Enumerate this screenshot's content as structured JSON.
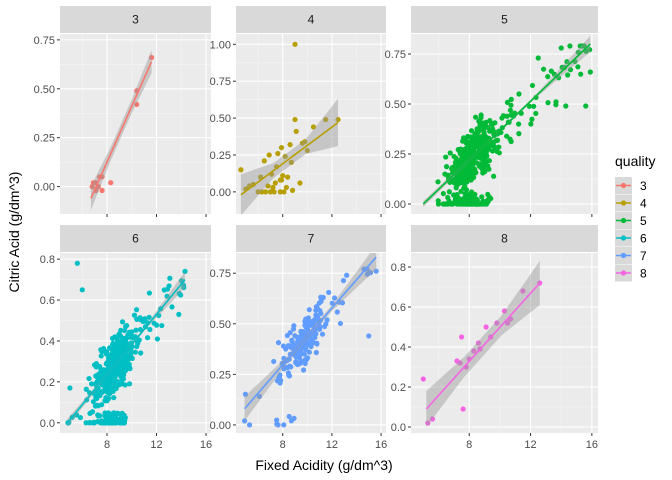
{
  "chart_data": {
    "type": "scatter",
    "title": "",
    "xlabel": "Fixed Acidity (g/dm^3)",
    "ylabel": "Citric Acid (g/dm^3)",
    "facet_by": "quality",
    "shared_x": true,
    "xlim": [
      4.2,
      16.4
    ],
    "x_ticks": [
      8,
      12,
      16
    ],
    "x_tick_labels": [
      "8",
      "12",
      "16"
    ],
    "grid": true,
    "smoothing": "linear fit with confidence band",
    "legend": {
      "title": "quality",
      "placement": "right",
      "entries": [
        "3",
        "4",
        "5",
        "6",
        "7",
        "8"
      ]
    },
    "panels": [
      {
        "label": "3",
        "color": "#F8766D",
        "ylim": [
          -0.14,
          0.78
        ],
        "y_ticks": [
          0,
          0.25,
          0.5,
          0.75
        ],
        "y_tick_labels": [
          "0.00",
          "0.25",
          "0.50",
          "0.75"
        ],
        "fit": {
          "x0": 6.7,
          "y0": -0.06,
          "x1": 11.6,
          "y1": 0.64
        },
        "band": [
          0.06,
          0.035,
          0.035,
          0.06
        ],
        "points": [
          [
            6.8,
            0.0
          ],
          [
            7.1,
            0.02
          ],
          [
            7.3,
            0.0
          ],
          [
            7.4,
            0.05
          ],
          [
            7.6,
            0.05
          ],
          [
            7.1,
            -0.02
          ],
          [
            7.6,
            -0.02
          ],
          [
            6.9,
            0.02
          ],
          [
            8.3,
            0.02
          ],
          [
            10.4,
            0.49
          ],
          [
            10.4,
            0.42
          ],
          [
            11.6,
            0.66
          ]
        ]
      },
      {
        "label": "4",
        "color": "#B79F00",
        "ylim": [
          -0.15,
          1.07
        ],
        "y_ticks": [
          0,
          0.25,
          0.5,
          0.75,
          1.0
        ],
        "y_tick_labels": [
          "0.00",
          "0.25",
          "0.50",
          "0.75",
          "1.00"
        ],
        "fit": {
          "x0": 4.6,
          "y0": -0.02,
          "x1": 12.5,
          "y1": 0.47
        },
        "band": [
          0.14,
          0.05,
          0.05,
          0.16
        ],
        "points": [
          [
            4.6,
            0.15
          ],
          [
            5.0,
            0.02
          ],
          [
            5.3,
            0.04
          ],
          [
            5.6,
            0.05
          ],
          [
            6.0,
            0.0
          ],
          [
            6.2,
            0.1
          ],
          [
            6.3,
            0.0
          ],
          [
            6.5,
            0.21
          ],
          [
            6.6,
            0.0
          ],
          [
            6.8,
            0.04
          ],
          [
            6.9,
            0.25
          ],
          [
            7.0,
            0.0
          ],
          [
            7.1,
            0.12
          ],
          [
            7.2,
            0.03
          ],
          [
            7.3,
            0.0
          ],
          [
            7.4,
            0.06
          ],
          [
            7.5,
            0.17
          ],
          [
            7.6,
            0.26
          ],
          [
            7.8,
            0.0
          ],
          [
            7.8,
            0.08
          ],
          [
            7.9,
            0.3
          ],
          [
            8.0,
            0.11
          ],
          [
            8.1,
            0.0
          ],
          [
            8.2,
            0.24
          ],
          [
            8.3,
            0.03
          ],
          [
            8.4,
            0.1
          ],
          [
            8.6,
            0.32
          ],
          [
            8.8,
            0.01
          ],
          [
            9.0,
            0.49
          ],
          [
            9.1,
            0.41
          ],
          [
            9.6,
            0.33
          ],
          [
            9.8,
            0.34
          ],
          [
            10.0,
            0.28
          ],
          [
            10.5,
            0.44
          ],
          [
            11.5,
            0.49
          ],
          [
            12.5,
            0.49
          ],
          [
            8.7,
            0.2
          ],
          [
            7.9,
            0.08
          ],
          [
            9.0,
            1.0
          ],
          [
            9.4,
            0.06
          ]
        ]
      },
      {
        "label": "5",
        "color": "#00BA38",
        "ylim": [
          -0.05,
          0.85
        ],
        "y_ticks": [
          0,
          0.25,
          0.5,
          0.75
        ],
        "y_tick_labels": [
          "0.00",
          "0.25",
          "0.50",
          "0.75"
        ],
        "fit": {
          "x0": 5.0,
          "y0": 0.0,
          "x1": 15.9,
          "y1": 0.8
        },
        "band": [
          0.015,
          0.008,
          0.008,
          0.04
        ],
        "points": []
      },
      {
        "label": "6",
        "color": "#00BFC4",
        "ylim": [
          -0.05,
          0.83
        ],
        "y_ticks": [
          0,
          0.2,
          0.4,
          0.6,
          0.8
        ],
        "y_tick_labels": [
          "0.0",
          "0.2",
          "0.4",
          "0.6",
          "0.8"
        ],
        "fit": {
          "x0": 4.8,
          "y0": 0.0,
          "x1": 14.3,
          "y1": 0.7
        },
        "band": [
          0.02,
          0.008,
          0.008,
          0.04
        ],
        "points": []
      },
      {
        "label": "7",
        "color": "#619CFF",
        "ylim": [
          -0.04,
          0.85
        ],
        "y_ticks": [
          0,
          0.25,
          0.5,
          0.75
        ],
        "y_tick_labels": [
          "0.00",
          "0.25",
          "0.50",
          "0.75"
        ],
        "fit": {
          "x0": 4.9,
          "y0": 0.08,
          "x1": 15.6,
          "y1": 0.83
        },
        "band": [
          0.06,
          0.015,
          0.015,
          0.06
        ],
        "points": []
      },
      {
        "label": "8",
        "color": "#F564E3",
        "ylim": [
          -0.03,
          0.87
        ],
        "y_ticks": [
          0,
          0.2,
          0.4,
          0.6,
          0.8
        ],
        "y_tick_labels": [
          "0.0",
          "0.2",
          "0.4",
          "0.6",
          "0.8"
        ],
        "fit": {
          "x0": 5.2,
          "y0": 0.09,
          "x1": 12.6,
          "y1": 0.72
        },
        "band": [
          0.09,
          0.05,
          0.05,
          0.11
        ],
        "points": [
          [
            5.0,
            0.24
          ],
          [
            5.6,
            0.04
          ],
          [
            5.3,
            0.02
          ],
          [
            7.2,
            0.33
          ],
          [
            7.4,
            0.32
          ],
          [
            7.5,
            0.45
          ],
          [
            7.6,
            0.09
          ],
          [
            7.8,
            0.3
          ],
          [
            8.0,
            0.34
          ],
          [
            8.3,
            0.38
          ],
          [
            8.6,
            0.42
          ],
          [
            8.7,
            0.39
          ],
          [
            9.1,
            0.5
          ],
          [
            9.4,
            0.45
          ],
          [
            9.8,
            0.52
          ],
          [
            10.3,
            0.58
          ],
          [
            10.5,
            0.52
          ],
          [
            10.7,
            0.54
          ],
          [
            11.5,
            0.68
          ],
          [
            12.6,
            0.72
          ]
        ]
      }
    ]
  }
}
